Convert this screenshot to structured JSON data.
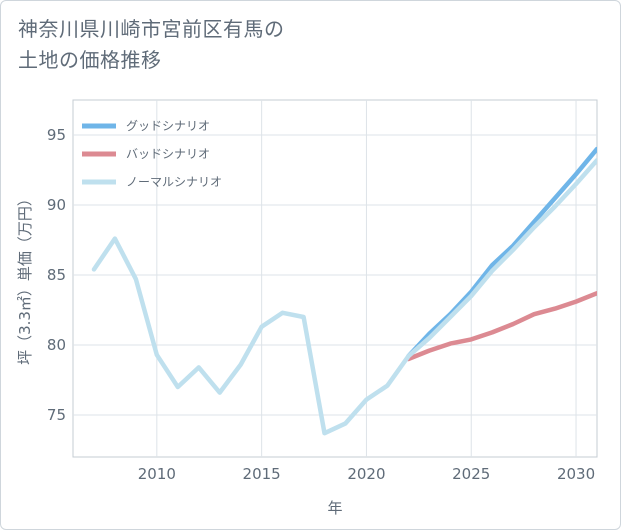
{
  "chart_data": {
    "type": "line",
    "title": "神奈川県川崎市宮前区有馬の\n土地の価格推移",
    "xlabel": "年",
    "ylabel": "坪（3.3㎡）単価（万円）",
    "xlim": [
      2006,
      2031
    ],
    "ylim": [
      72,
      97.5
    ],
    "xticks": [
      2010,
      2015,
      2020,
      2025,
      2030
    ],
    "yticks": [
      75,
      80,
      85,
      90,
      95
    ],
    "grid": true,
    "legend_position": "top-left",
    "series": [
      {
        "name": "グッドシナリオ",
        "color": "#6fb5e8",
        "x": [
          2022,
          2023,
          2024,
          2025,
          2026,
          2027,
          2028,
          2029,
          2030,
          2031
        ],
        "values": [
          79.2,
          80.8,
          82.2,
          83.8,
          85.7,
          87.1,
          88.8,
          90.5,
          92.2,
          94.0
        ]
      },
      {
        "name": "バッドシナリオ",
        "color": "#dc8a92",
        "x": [
          2022,
          2023,
          2024,
          2025,
          2026,
          2027,
          2028,
          2029,
          2030,
          2031
        ],
        "values": [
          79.0,
          79.6,
          80.1,
          80.4,
          80.9,
          81.5,
          82.2,
          82.6,
          83.1,
          83.7
        ]
      },
      {
        "name": "ノーマルシナリオ",
        "color": "#bfe0ee",
        "x": [
          2007,
          2008,
          2009,
          2010,
          2011,
          2012,
          2013,
          2014,
          2015,
          2016,
          2017,
          2018,
          2019,
          2020,
          2021,
          2022,
          2023,
          2024,
          2025,
          2026,
          2027,
          2028,
          2029,
          2030,
          2031
        ],
        "values": [
          85.4,
          87.6,
          84.7,
          79.3,
          77.0,
          78.4,
          76.6,
          78.6,
          81.3,
          82.3,
          82.0,
          73.7,
          74.4,
          76.1,
          77.1,
          79.2,
          80.5,
          82.0,
          83.5,
          85.3,
          86.8,
          88.4,
          89.9,
          91.5,
          93.2
        ]
      }
    ]
  }
}
